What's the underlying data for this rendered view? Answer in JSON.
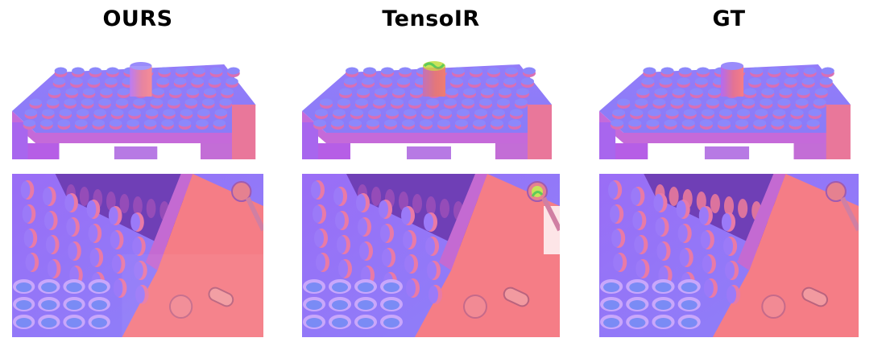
{
  "columns": [
    {
      "title": "OURS"
    },
    {
      "title": "TensoIR"
    },
    {
      "title": "GT"
    }
  ],
  "colors": {
    "background": "#ffffff",
    "normal_blue": "#8a7cf8",
    "normal_violet": "#b36af3",
    "normal_pink": "#f57d86",
    "artifact_yellow": "#c8e25a",
    "artifact_green": "#5ecb59"
  }
}
